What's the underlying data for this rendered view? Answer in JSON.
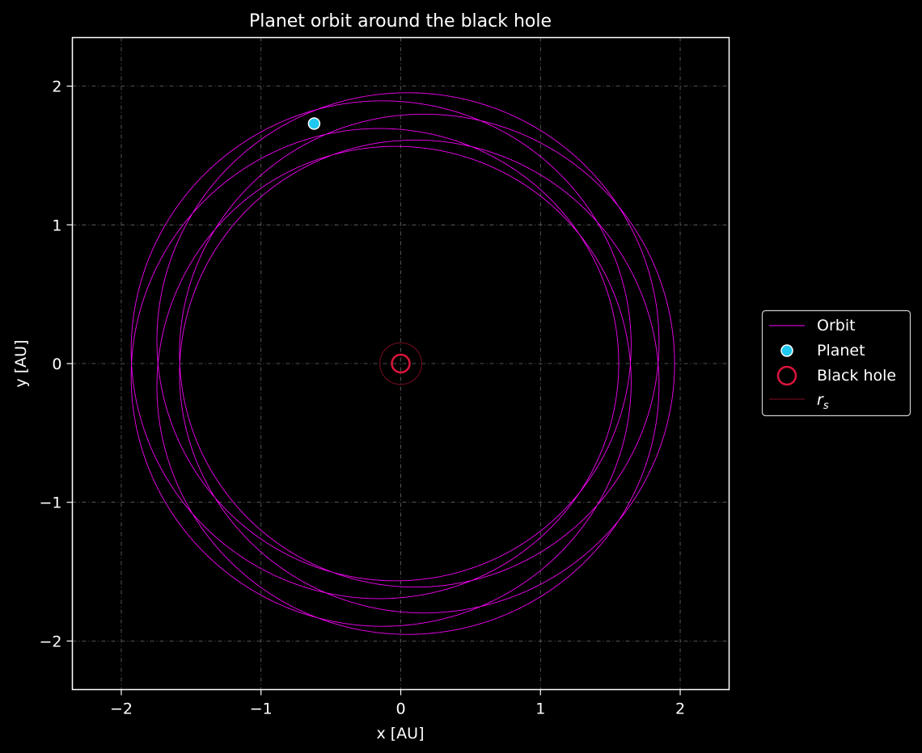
{
  "chart_data": {
    "type": "line",
    "title": "Planet orbit around the black hole",
    "xlabel": "x [AU]",
    "ylabel": "y [AU]",
    "xlim": [
      -2.35,
      2.35
    ],
    "ylim": [
      -2.35,
      2.35
    ],
    "xticks": [
      -2,
      -1,
      0,
      1,
      2
    ],
    "yticks": [
      -2,
      -1,
      0,
      1,
      2
    ],
    "xtick_labels": [
      "−2",
      "−1",
      "0",
      "1",
      "2"
    ],
    "ytick_labels": [
      "−2",
      "−1",
      "0",
      "1",
      "2"
    ],
    "grid": true,
    "legend_position": "outside right",
    "orbit": {
      "name": "Orbit",
      "periapsis_au": 1.56,
      "apoapsis_au": 1.96,
      "precession_deg_per_orbit": 60,
      "orbits_shown": 6,
      "color": "#ff00ff"
    },
    "planet": {
      "name": "Planet",
      "x": -0.62,
      "y": 1.73,
      "color": "#1ec8f0"
    },
    "black_hole": {
      "name": "Black hole",
      "x": 0,
      "y": 0,
      "color": "#dc143c"
    },
    "schwarzschild_radius": {
      "name": "r_s",
      "r_au": 0.15,
      "color": "#dc143c"
    }
  }
}
